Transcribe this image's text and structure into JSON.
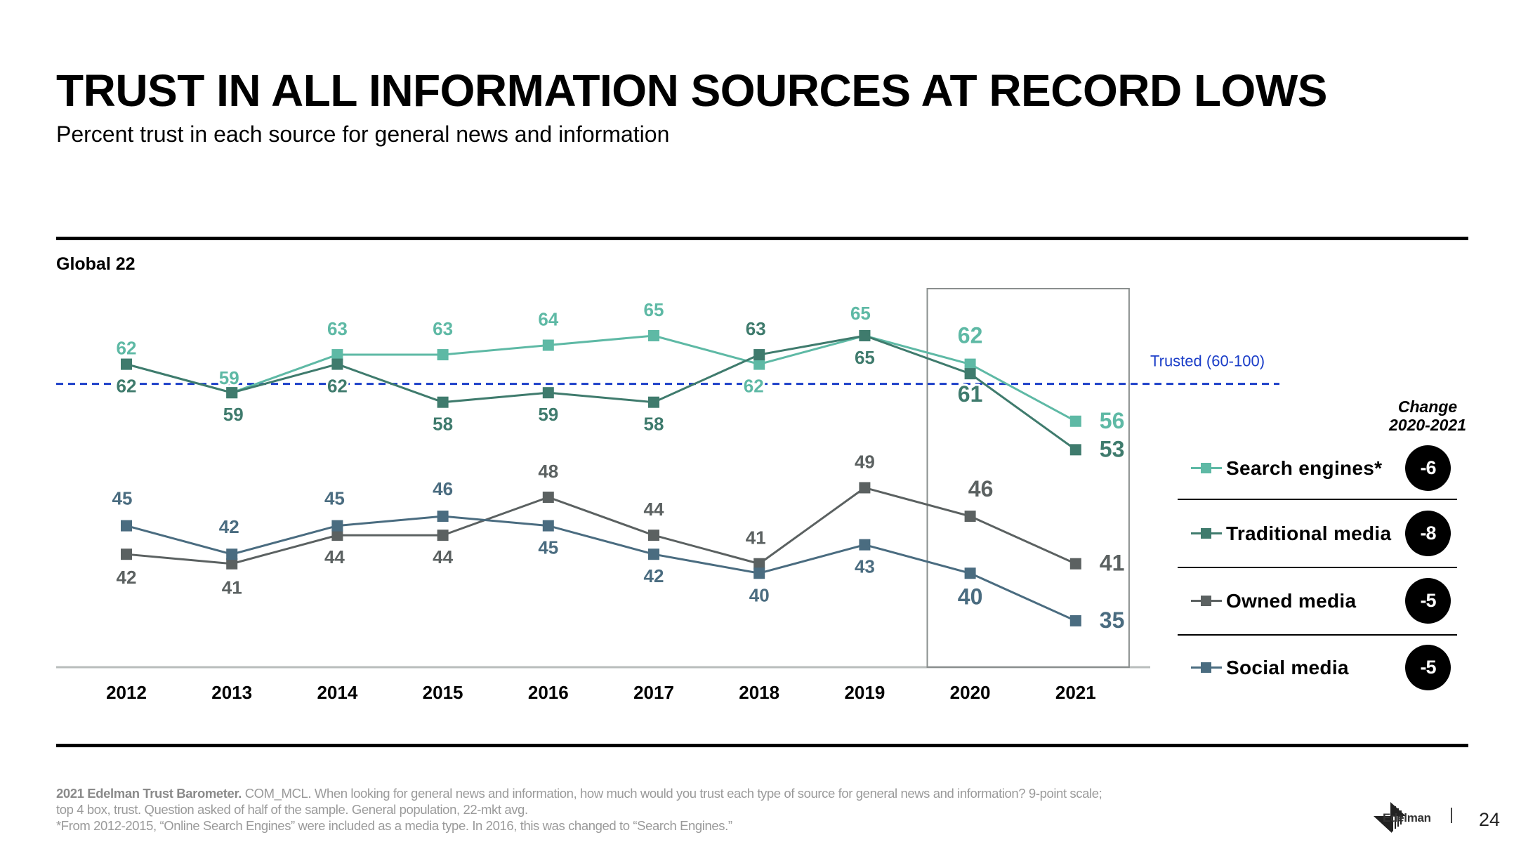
{
  "header": {
    "title": "TRUST IN ALL INFORMATION SOURCES AT RECORD LOWS",
    "subtitle": "Percent trust in each source for general news and information"
  },
  "region_label": "Global 22",
  "chart_data": {
    "type": "line",
    "title": "TRUST IN ALL INFORMATION SOURCES AT RECORD LOWS",
    "subtitle": "Percent trust in each source for general news and information",
    "xlabel": "",
    "ylabel": "",
    "x": [
      "2012",
      "2013",
      "2014",
      "2015",
      "2016",
      "2017",
      "2018",
      "2019",
      "2020",
      "2021"
    ],
    "ylim": [
      30,
      70
    ],
    "grid": false,
    "series": [
      {
        "name": "Search engines*",
        "color": "#5EB9A5",
        "values": [
          62,
          59,
          63,
          63,
          64,
          65,
          62,
          65,
          62,
          56
        ]
      },
      {
        "name": "Traditional media",
        "color": "#3F7B6D",
        "values": [
          62,
          59,
          62,
          58,
          59,
          58,
          63,
          65,
          61,
          53
        ]
      },
      {
        "name": "Owned media",
        "color": "#5B6161",
        "values": [
          42,
          41,
          44,
          44,
          48,
          44,
          41,
          49,
          46,
          41
        ]
      },
      {
        "name": "Social media",
        "color": "#4A6C80",
        "values": [
          45,
          42,
          45,
          46,
          45,
          42,
          40,
          43,
          40,
          35
        ]
      }
    ],
    "reference_line": {
      "value": 60,
      "label": "Trusted (60-100)",
      "color": "#1A3DC8"
    },
    "highlight": {
      "from": "2020",
      "to": "2021"
    },
    "legend_placement": "right"
  },
  "legend": {
    "change_header_line1": "Change",
    "change_header_line2": "2020-2021",
    "items": [
      {
        "label": "Search engines*",
        "change": "-6",
        "color": "#5EB9A5"
      },
      {
        "label": "Traditional media",
        "change": "-8",
        "color": "#3F7B6D"
      },
      {
        "label": "Owned media",
        "change": "-5",
        "color": "#5B6161"
      },
      {
        "label": "Social media",
        "change": "-5",
        "color": "#4A6C80"
      }
    ]
  },
  "footer": {
    "source_bold": "2021 Edelman Trust Barometer.",
    "source_text": " COM_MCL.  When looking for general news and information, how much would you trust each type  of source for general news and information? 9-point scale;",
    "line2": "top 4 box, trust. Question asked of half of the sample. General population, 22-mkt avg.",
    "line3": "*From 2012-2015, “Online Search Engines” were included as a media type. In 2016, this was changed to “Search Engines.”"
  },
  "brand": {
    "name": "Edelman"
  },
  "page_number": "24"
}
